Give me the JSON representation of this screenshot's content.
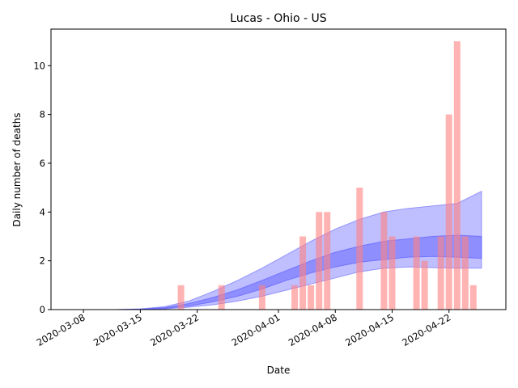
{
  "chart_data": {
    "type": "bar",
    "title": "Lucas - Ohio - US",
    "xlabel": "Date",
    "ylabel": "Daily number of deaths",
    "xlim": [
      "2020-03-04",
      "2020-04-29"
    ],
    "ylim": [
      0,
      11.5
    ],
    "grid": false,
    "x_ticks": [
      "2020-03-08",
      "2020-03-15",
      "2020-03-22",
      "2020-04-01",
      "2020-04-08",
      "2020-04-15",
      "2020-04-22"
    ],
    "y_ticks": [
      0,
      2,
      4,
      6,
      8,
      10
    ],
    "colors": {
      "bars": "#ff8080",
      "band_outer": "#8080ff",
      "band_inner": "#6666ff"
    },
    "bars": {
      "dates": [
        "2020-03-20",
        "2020-03-25",
        "2020-03-30",
        "2020-04-03",
        "2020-04-04",
        "2020-04-05",
        "2020-04-06",
        "2020-04-07",
        "2020-04-11",
        "2020-04-14",
        "2020-04-15",
        "2020-04-18",
        "2020-04-19",
        "2020-04-21",
        "2020-04-22",
        "2020-04-23",
        "2020-04-24",
        "2020-04-25"
      ],
      "values": [
        1,
        1,
        1,
        1,
        3,
        1,
        4,
        4,
        5,
        4,
        3,
        3,
        2,
        3,
        8,
        11,
        3,
        1
      ]
    },
    "band_outer": {
      "dates": [
        "2020-03-12",
        "2020-03-15",
        "2020-03-18",
        "2020-03-21",
        "2020-03-24",
        "2020-03-27",
        "2020-03-30",
        "2020-04-02",
        "2020-04-05",
        "2020-04-08",
        "2020-04-11",
        "2020-04-14",
        "2020-04-17",
        "2020-04-20",
        "2020-04-23",
        "2020-04-26"
      ],
      "lower": [
        0,
        0,
        0.03,
        0.1,
        0.2,
        0.35,
        0.55,
        0.8,
        1.05,
        1.3,
        1.55,
        1.7,
        1.75,
        1.72,
        1.7,
        1.7
      ],
      "upper": [
        0,
        0.03,
        0.12,
        0.35,
        0.75,
        1.2,
        1.7,
        2.25,
        2.8,
        3.3,
        3.7,
        4.0,
        4.15,
        4.25,
        4.35,
        4.85
      ]
    },
    "band_inner": {
      "dates": [
        "2020-03-12",
        "2020-03-15",
        "2020-03-18",
        "2020-03-21",
        "2020-03-24",
        "2020-03-27",
        "2020-03-30",
        "2020-04-02",
        "2020-04-05",
        "2020-04-08",
        "2020-04-11",
        "2020-04-14",
        "2020-04-17",
        "2020-04-20",
        "2020-04-23",
        "2020-04-26"
      ],
      "lower": [
        0,
        0.01,
        0.05,
        0.15,
        0.32,
        0.55,
        0.85,
        1.2,
        1.5,
        1.75,
        1.95,
        2.05,
        2.15,
        2.18,
        2.15,
        2.1
      ],
      "upper": [
        0,
        0.02,
        0.08,
        0.25,
        0.5,
        0.82,
        1.2,
        1.6,
        2.0,
        2.35,
        2.6,
        2.8,
        2.9,
        3.0,
        3.05,
        3.0
      ]
    }
  }
}
